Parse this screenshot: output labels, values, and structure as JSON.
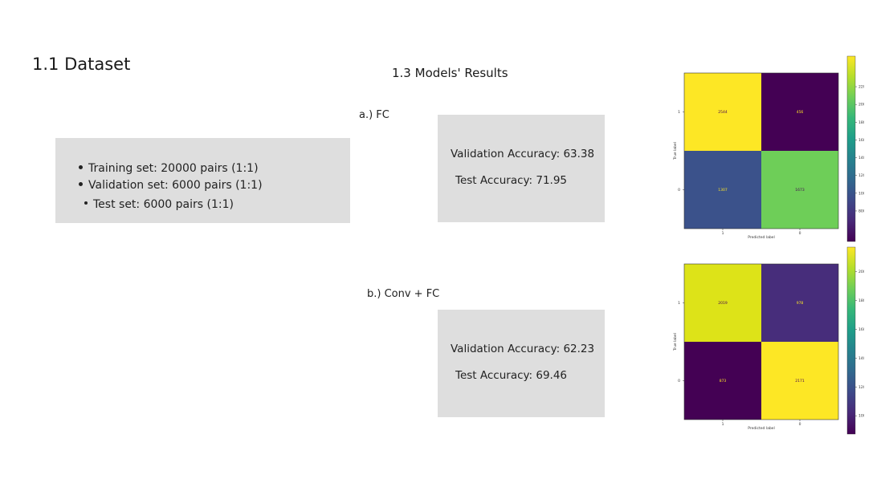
{
  "slide": {
    "title": "1.1 Dataset",
    "results_title": "1.3 Models' Results"
  },
  "dataset": {
    "items": [
      "Training set: 20000 pairs (1:1)",
      "Validation set: 6000 pairs (1:1)",
      "Test set: 6000 pairs (1:1)"
    ]
  },
  "models": [
    {
      "label": "a.) FC",
      "validation": "Validation Accuracy: 63.38",
      "test": "Test Accuracy: 71.95"
    },
    {
      "label": "b.)  Conv + FC",
      "validation": "Validation Accuracy: 62.23",
      "test": "Test Accuracy: 69.46"
    }
  ],
  "chart_data": [
    {
      "type": "heatmap",
      "colormap": "viridis",
      "xlabel": "Predicted label",
      "ylabel": "True label",
      "x_ticks": [
        "1",
        "0"
      ],
      "y_ticks": [
        "1",
        "0"
      ],
      "cells": [
        [
          2544,
          456
        ],
        [
          1307,
          1673
        ]
      ],
      "cell_colors": [
        [
          "#fde725",
          "#440154"
        ],
        [
          "#3b528b",
          "#6ece58"
        ]
      ],
      "text_colors": [
        [
          "#440154",
          "#fde725"
        ],
        [
          "#fde725",
          "#440154"
        ]
      ],
      "colorbar_ticks": [
        "2200",
        "2000",
        "1800",
        "1600",
        "1400",
        "1200",
        "1000",
        "800"
      ],
      "colorbar_range": [
        456,
        2544
      ]
    },
    {
      "type": "heatmap",
      "colormap": "viridis",
      "xlabel": "Predicted label",
      "ylabel": "True label",
      "x_ticks": [
        "1",
        "0"
      ],
      "y_ticks": [
        "1",
        "0"
      ],
      "cells": [
        [
          2019,
          978
        ],
        [
          873,
          2171
        ]
      ],
      "cell_colors": [
        [
          "#dde318",
          "#472d7b"
        ],
        [
          "#440154",
          "#fde725"
        ]
      ],
      "text_colors": [
        [
          "#440154",
          "#fde725"
        ],
        [
          "#fde725",
          "#440154"
        ]
      ],
      "colorbar_ticks": [
        "2000",
        "1800",
        "1600",
        "1400",
        "1200",
        "1000"
      ],
      "colorbar_range": [
        873,
        2171
      ]
    }
  ]
}
